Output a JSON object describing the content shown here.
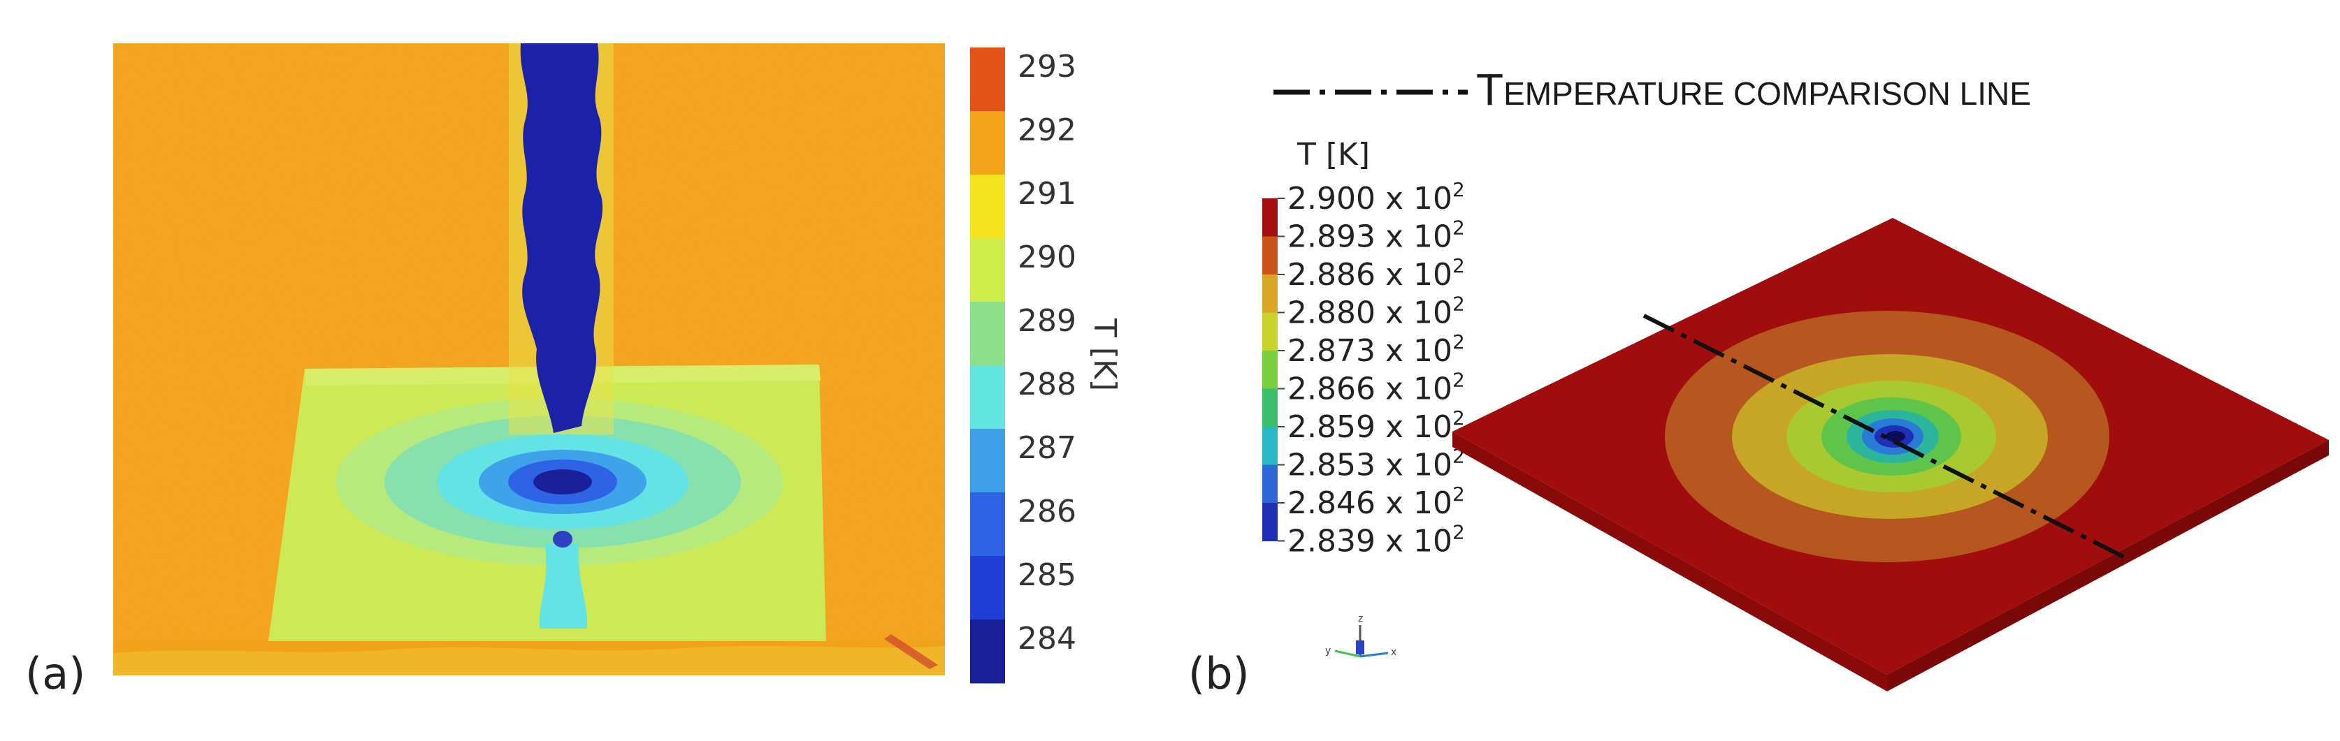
{
  "panel_a": {
    "label": "(a)",
    "colorbar": {
      "unit_label": "T [K]",
      "ticks": [
        "293",
        "292",
        "291",
        "290",
        "289",
        "288",
        "287",
        "286",
        "285",
        "284"
      ],
      "colors": [
        "#e35418",
        "#f2a318",
        "#f6e41e",
        "#cfee4a",
        "#8fe08a",
        "#63e6e0",
        "#3fa0ea",
        "#2f63e6",
        "#1f3fd6",
        "#1a1f9a"
      ]
    }
  },
  "panel_b": {
    "label": "(b)",
    "legend_line": {
      "text_cap1": "T",
      "text_rest1": "EMPERATURE COMPARISON LINE"
    },
    "colorbar": {
      "unit_label": "T [K]",
      "ticks": [
        {
          "mant": "2.900 x 10",
          "exp": "2"
        },
        {
          "mant": "2.893 x 10",
          "exp": "2"
        },
        {
          "mant": "2.886 x 10",
          "exp": "2"
        },
        {
          "mant": "2.880 x 10",
          "exp": "2"
        },
        {
          "mant": "2.873 x 10",
          "exp": "2"
        },
        {
          "mant": "2.866 x 10",
          "exp": "2"
        },
        {
          "mant": "2.859 x 10",
          "exp": "2"
        },
        {
          "mant": "2.853 x 10",
          "exp": "2"
        },
        {
          "mant": "2.846 x 10",
          "exp": "2"
        },
        {
          "mant": "2.839 x 10",
          "exp": "2"
        }
      ],
      "colors": [
        "#a50f0f",
        "#c9551a",
        "#d9a625",
        "#c8d42a",
        "#7ccf3c",
        "#3bbf6c",
        "#2ab8c6",
        "#2a68d6",
        "#1f2fb6"
      ]
    },
    "triad_axes": {
      "x": "x",
      "y": "y",
      "z": "z"
    }
  }
}
